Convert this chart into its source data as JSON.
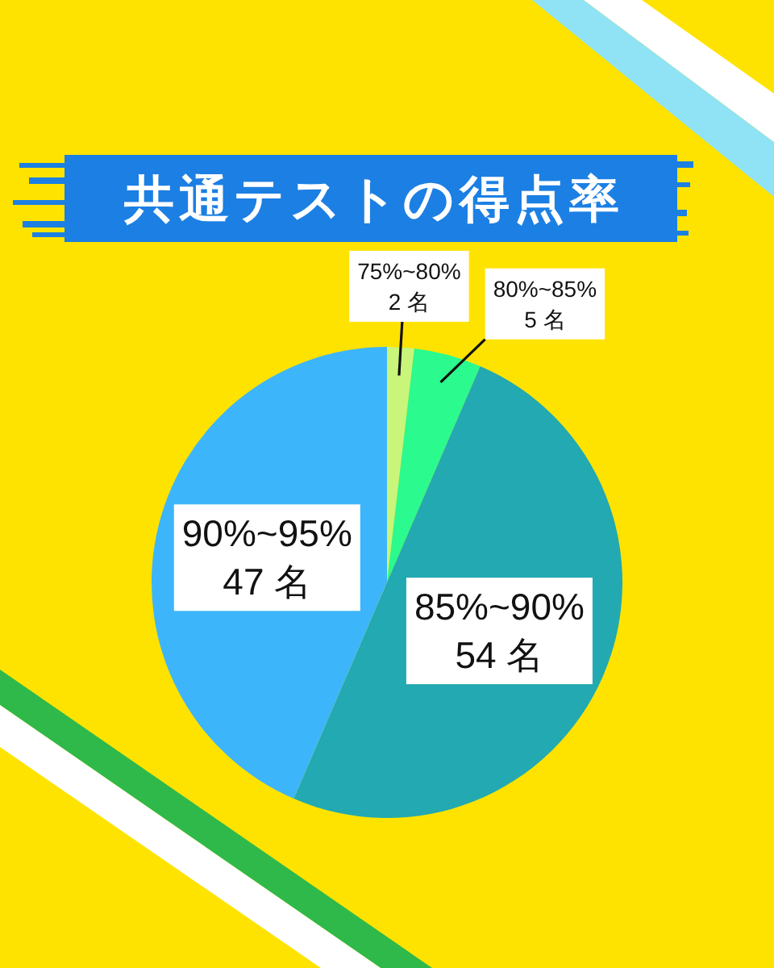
{
  "chart_data": {
    "type": "pie",
    "title": "共通テストの得点率",
    "categories": [
      "75%~80%",
      "80%~85%",
      "85%~90%",
      "90%~95%"
    ],
    "values": [
      2,
      5,
      54,
      47
    ],
    "colors": [
      "#c8f57a",
      "#2bfa8f",
      "#22a9b1",
      "#3db5fb"
    ],
    "value_labels": [
      "2 名",
      "5 名",
      "54 名",
      "47 名"
    ]
  }
}
